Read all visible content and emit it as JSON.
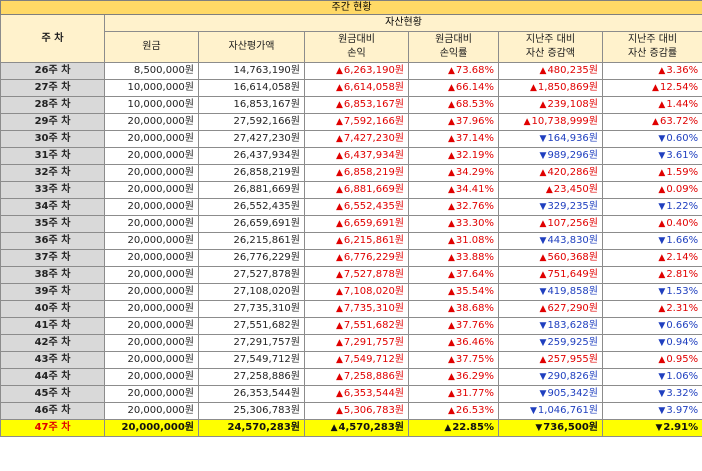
{
  "title": "주간 현황",
  "headers": {
    "week": "주 차",
    "group": "자산현황",
    "principal": "원금",
    "asset_value": "자산평가액",
    "pl_amount_line1": "원금대비",
    "pl_amount_line2": "손익",
    "pl_rate_line1": "원금대비",
    "pl_rate_line2": "손익률",
    "wow_amount_line1": "지난주 대비",
    "wow_amount_line2": "자산 증감액",
    "wow_rate_line1": "지난주 대비",
    "wow_rate_line2": "자산 증감률"
  },
  "arrows": {
    "up": "▲",
    "down": "▼"
  },
  "rows": [
    {
      "week": "26주 차",
      "principal": "8,500,000원",
      "asset": "14,763,190원",
      "pl": "6,263,190원",
      "pl_rate": "73.68%",
      "diff": "480,235원",
      "diff_rate": "3.36%",
      "dir": "up",
      "pl_dir": "up"
    },
    {
      "week": "27주 차",
      "principal": "10,000,000원",
      "asset": "16,614,058원",
      "pl": "6,614,058원",
      "pl_rate": "66.14%",
      "diff": "1,850,869원",
      "diff_rate": "12.54%",
      "dir": "up",
      "pl_dir": "up"
    },
    {
      "week": "28주 차",
      "principal": "10,000,000원",
      "asset": "16,853,167원",
      "pl": "6,853,167원",
      "pl_rate": "68.53%",
      "diff": "239,108원",
      "diff_rate": "1.44%",
      "dir": "up",
      "pl_dir": "up"
    },
    {
      "week": "29주 차",
      "principal": "20,000,000원",
      "asset": "27,592,166원",
      "pl": "7,592,166원",
      "pl_rate": "37.96%",
      "diff": "10,738,999원",
      "diff_rate": "63.72%",
      "dir": "up",
      "pl_dir": "up"
    },
    {
      "week": "30주 차",
      "principal": "20,000,000원",
      "asset": "27,427,230원",
      "pl": "7,427,230원",
      "pl_rate": "37.14%",
      "diff": "164,936원",
      "diff_rate": "0.60%",
      "dir": "down",
      "pl_dir": "up"
    },
    {
      "week": "31주 차",
      "principal": "20,000,000원",
      "asset": "26,437,934원",
      "pl": "6,437,934원",
      "pl_rate": "32.19%",
      "diff": "989,296원",
      "diff_rate": "3.61%",
      "dir": "down",
      "pl_dir": "up"
    },
    {
      "week": "32주 차",
      "principal": "20,000,000원",
      "asset": "26,858,219원",
      "pl": "6,858,219원",
      "pl_rate": "34.29%",
      "diff": "420,286원",
      "diff_rate": "1.59%",
      "dir": "up",
      "pl_dir": "up"
    },
    {
      "week": "33주 차",
      "principal": "20,000,000원",
      "asset": "26,881,669원",
      "pl": "6,881,669원",
      "pl_rate": "34.41%",
      "diff": "23,450원",
      "diff_rate": "0.09%",
      "dir": "up",
      "pl_dir": "up"
    },
    {
      "week": "34주 차",
      "principal": "20,000,000원",
      "asset": "26,552,435원",
      "pl": "6,552,435원",
      "pl_rate": "32.76%",
      "diff": "329,235원",
      "diff_rate": "1.22%",
      "dir": "down",
      "pl_dir": "up"
    },
    {
      "week": "35주 차",
      "principal": "20,000,000원",
      "asset": "26,659,691원",
      "pl": "6,659,691원",
      "pl_rate": "33.30%",
      "diff": "107,256원",
      "diff_rate": "0.40%",
      "dir": "up",
      "pl_dir": "up"
    },
    {
      "week": "36주 차",
      "principal": "20,000,000원",
      "asset": "26,215,861원",
      "pl": "6,215,861원",
      "pl_rate": "31.08%",
      "diff": "443,830원",
      "diff_rate": "1.66%",
      "dir": "down",
      "pl_dir": "up"
    },
    {
      "week": "37주 차",
      "principal": "20,000,000원",
      "asset": "26,776,229원",
      "pl": "6,776,229원",
      "pl_rate": "33.88%",
      "diff": "560,368원",
      "diff_rate": "2.14%",
      "dir": "up",
      "pl_dir": "up"
    },
    {
      "week": "38주 차",
      "principal": "20,000,000원",
      "asset": "27,527,878원",
      "pl": "7,527,878원",
      "pl_rate": "37.64%",
      "diff": "751,649원",
      "diff_rate": "2.81%",
      "dir": "up",
      "pl_dir": "up"
    },
    {
      "week": "39주 차",
      "principal": "20,000,000원",
      "asset": "27,108,020원",
      "pl": "7,108,020원",
      "pl_rate": "35.54%",
      "diff": "419,858원",
      "diff_rate": "1.53%",
      "dir": "down",
      "pl_dir": "up"
    },
    {
      "week": "40주 차",
      "principal": "20,000,000원",
      "asset": "27,735,310원",
      "pl": "7,735,310원",
      "pl_rate": "38.68%",
      "diff": "627,290원",
      "diff_rate": "2.31%",
      "dir": "up",
      "pl_dir": "up"
    },
    {
      "week": "41주 차",
      "principal": "20,000,000원",
      "asset": "27,551,682원",
      "pl": "7,551,682원",
      "pl_rate": "37.76%",
      "diff": "183,628원",
      "diff_rate": "0.66%",
      "dir": "down",
      "pl_dir": "up"
    },
    {
      "week": "42주 차",
      "principal": "20,000,000원",
      "asset": "27,291,757원",
      "pl": "7,291,757원",
      "pl_rate": "36.46%",
      "diff": "259,925원",
      "diff_rate": "0.94%",
      "dir": "down",
      "pl_dir": "up"
    },
    {
      "week": "43주 차",
      "principal": "20,000,000원",
      "asset": "27,549,712원",
      "pl": "7,549,712원",
      "pl_rate": "37.75%",
      "diff": "257,955원",
      "diff_rate": "0.95%",
      "dir": "up",
      "pl_dir": "up"
    },
    {
      "week": "44주 차",
      "principal": "20,000,000원",
      "asset": "27,258,886원",
      "pl": "7,258,886원",
      "pl_rate": "36.29%",
      "diff": "290,826원",
      "diff_rate": "1.06%",
      "dir": "down",
      "pl_dir": "up"
    },
    {
      "week": "45주 차",
      "principal": "20,000,000원",
      "asset": "26,353,544원",
      "pl": "6,353,544원",
      "pl_rate": "31.77%",
      "diff": "905,342원",
      "diff_rate": "3.32%",
      "dir": "down",
      "pl_dir": "up"
    },
    {
      "week": "46주 차",
      "principal": "20,000,000원",
      "asset": "25,306,783원",
      "pl": "5,306,783원",
      "pl_rate": "26.53%",
      "diff": "1,046,761원",
      "diff_rate": "3.97%",
      "dir": "down",
      "pl_dir": "up"
    },
    {
      "week": "47주 차",
      "principal": "20,000,000원",
      "asset": "24,570,283원",
      "pl": "4,570,283원",
      "pl_rate": "22.85%",
      "diff": "736,500원",
      "diff_rate": "2.91%",
      "dir": "down",
      "pl_dir": "up",
      "highlight": true
    }
  ],
  "colors": {
    "title_bg": "#ffd966",
    "header_bg": "#fff2cc",
    "week_bg": "#d9d9d9",
    "up": "#e00000",
    "down": "#1f3fbf",
    "highlight": "#ffff00"
  }
}
